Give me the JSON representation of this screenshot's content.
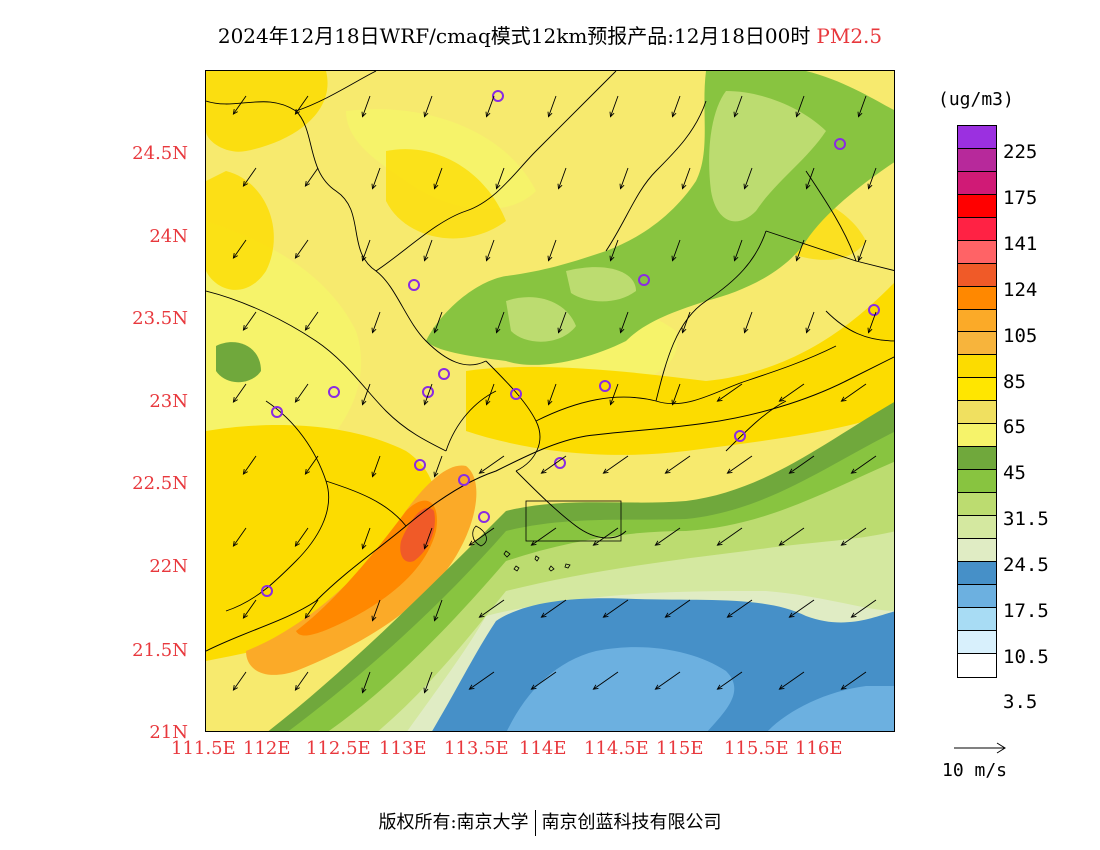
{
  "header": {
    "title": "2024年12月18日WRF/cmaq模式12km预报产品:12月18日00时",
    "pollutant": "PM2.5"
  },
  "axes": {
    "y_ticks": [
      "24.5N",
      "24N",
      "23.5N",
      "23N",
      "22.5N",
      "22N",
      "21.5N",
      "21N"
    ],
    "x_ticks": [
      "111.5E",
      "112E",
      "112.5E",
      "113E",
      "113.5E",
      "114E",
      "114.5E",
      "115E",
      "115.5E",
      "116E"
    ]
  },
  "legend": {
    "unit": "(ug/m3)",
    "levels": [
      "225",
      "175",
      "141",
      "124",
      "105",
      "85",
      "65",
      "45",
      "31.5",
      "24.5",
      "17.5",
      "10.5",
      "3.5"
    ],
    "colors": [
      "#9b30e0",
      "#b7299b",
      "#d01a76",
      "#ff0000",
      "#ff2244",
      "#ff6366",
      "#f05a28",
      "#ff8800",
      "#fbaa28",
      "#f7b43c",
      "#fcdc00",
      "#ffe600",
      "#f0e060",
      "#f6f36a",
      "#70a83c",
      "#88c440",
      "#bcdc70",
      "#d4e8a0",
      "#e0ecc4",
      "#4690c8",
      "#6cb0e0",
      "#a8dcf4",
      "#d8f0fc",
      "#ffffff"
    ]
  },
  "wind_legend": {
    "label": "10 m/s"
  },
  "footer": {
    "copyright": "版权所有:南京大学",
    "company": "南京创蓝科技有限公司"
  }
}
